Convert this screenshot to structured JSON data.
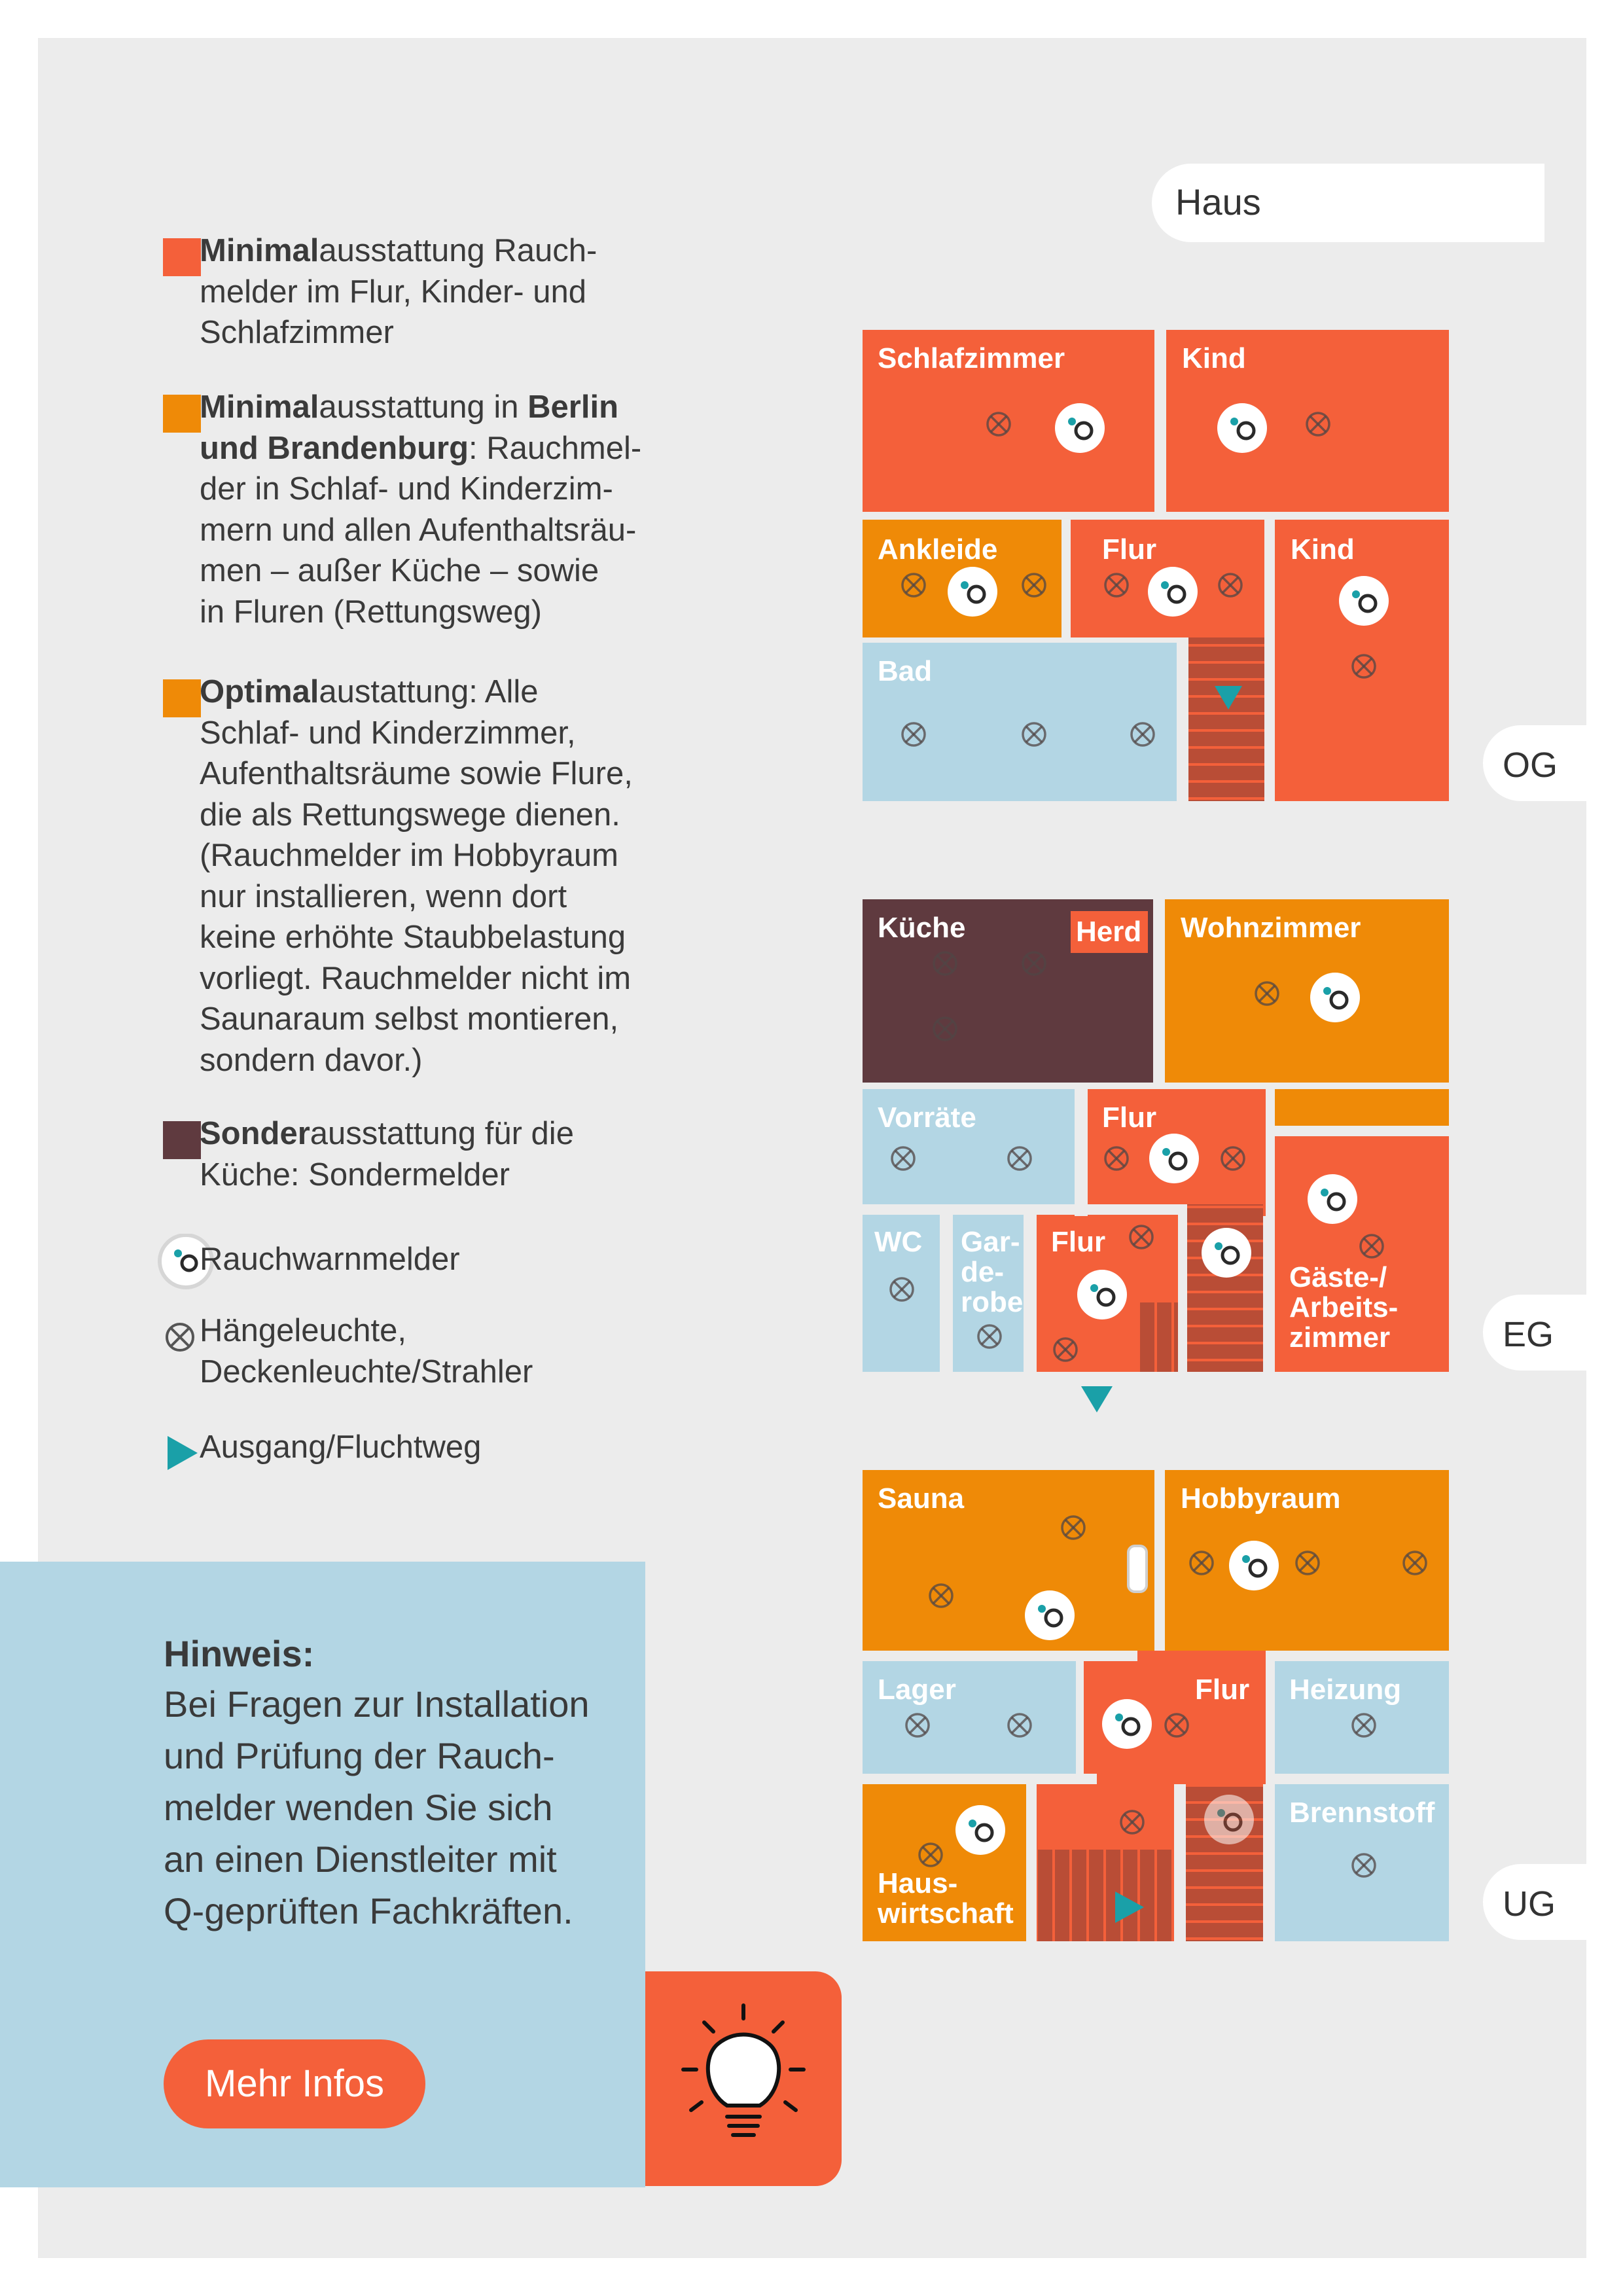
{
  "legend": {
    "items": [
      {
        "bold": "Minimal",
        "text": "ausstattung Rauch-",
        "lines": [
          "melder im Flur, Kinder- und",
          "Schlafzimmer"
        ],
        "color": "#f4603a"
      },
      {
        "bold": "Minimal",
        "text": "ausstattung in ",
        "bold2": "Berlin",
        "lines2_bold": "und Brandenburg",
        "lines2_rest": ": Rauchmel-",
        "lines": [
          "der in Schlaf- und Kinderzim-",
          "mern und allen Aufenthaltsräu-",
          "men – außer Küche – sowie",
          "in Fluren (Rettungsweg)"
        ],
        "color": "#ef8a07"
      },
      {
        "bold": "Optimal",
        "text": "austattung: Alle",
        "lines": [
          "Schlaf- und Kinderzimmer,",
          "Aufenthaltsräume sowie Flure,",
          "die als Rettungswege dienen.",
          "(Rauchmelder im Hobbyraum",
          "nur installieren, wenn dort",
          "keine erhöhte Staubbelastung",
          "vorliegt. Rauchmelder nicht im",
          "Saunaraum selbst montieren,",
          "sondern davor.)"
        ],
        "color": "#ef8a07"
      },
      {
        "bold": "Sonder",
        "text": "ausstattung für die",
        "lines": [
          "Küche: Sondermelder"
        ],
        "color": "#5f3a3f"
      }
    ],
    "smoke_detector": "Rauchwarnmelder",
    "lamp": [
      "Hängeleuchte,",
      "Deckenleuchte/Strahler"
    ],
    "exit": "Ausgang/Fluchtweg"
  },
  "house_label": "Haus",
  "levels": {
    "og": "OG",
    "eg": "EG",
    "ug": "UG"
  },
  "rooms": {
    "schlafzimmer": "Schlafzimmer",
    "kind1": "Kind",
    "ankleide": "Ankleide",
    "flur_og": "Flur",
    "kind2": "Kind",
    "bad": "Bad",
    "kueche": "Küche",
    "herd": "Herd",
    "wohnzimmer": "Wohnzimmer",
    "vorraete": "Vorräte",
    "flur_eg1": "Flur",
    "wc": "WC",
    "garderobe": [
      "Gar-",
      "de-",
      "robe"
    ],
    "flur_eg2": "Flur",
    "gaeste": [
      "Gäste-/",
      "Arbeits-",
      "zimmer"
    ],
    "sauna": "Sauna",
    "hobbyraum": "Hobbyraum",
    "lager": "Lager",
    "flur_ug": "Flur",
    "heizung": "Heizung",
    "brennstoff": "Brennstoff",
    "hauswirtschaft": [
      "Haus-",
      "wirtschaft"
    ]
  },
  "note": {
    "title": "Hinweis:",
    "body": [
      "Bei Fragen zur Installation",
      "und Prüfung der Rauch-",
      "melder wenden Sie sich",
      "an einen Dienstleiter mit",
      "Q-geprüften Fachkräften."
    ],
    "button": "Mehr Infos"
  },
  "colors": {
    "red": "#f4603a",
    "orange": "#ef8a07",
    "dark": "#5f3a3f",
    "blue": "#b3d6e4",
    "teal": "#1aa0a8",
    "stairs": "#b94d36"
  },
  "icons": {
    "detector": "smoke-detector-icon",
    "lamp": "ceiling-lamp-icon",
    "exit": "exit-arrow-icon",
    "bulb": "lightbulb-icon"
  }
}
